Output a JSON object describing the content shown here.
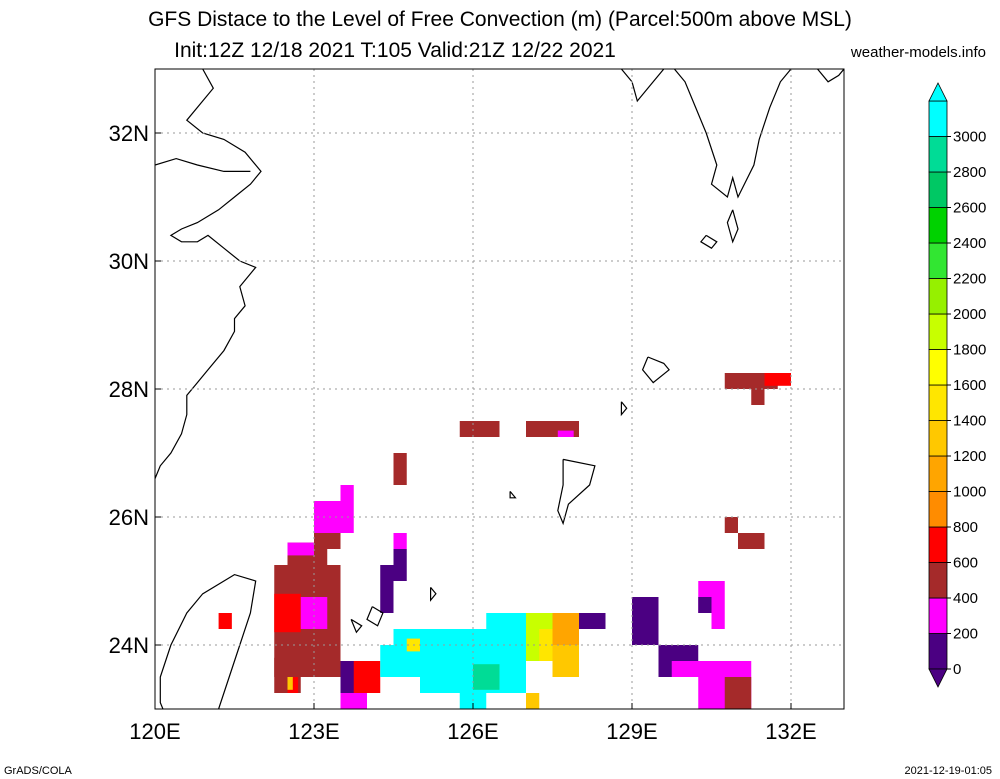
{
  "title_line1": "GFS Distace to the Level of Free Convection (m) (Parcel:500m above MSL)",
  "title_line2": "Init:12Z 12/18 2021 T:105 Valid:21Z 12/22 2021",
  "site": "weather-models.info",
  "footer_left": "GrADS/COLA",
  "footer_right": "2021-12-19-01:05",
  "map": {
    "lon_range": [
      120,
      133
    ],
    "lat_range": [
      23,
      33
    ],
    "lon_ticks": [
      120,
      123,
      126,
      129,
      132
    ],
    "lon_tick_labels": [
      "120E",
      "123E",
      "126E",
      "129E",
      "132E"
    ],
    "lat_ticks": [
      24,
      26,
      28,
      30,
      32
    ],
    "lat_tick_labels": [
      "24N",
      "26N",
      "28N",
      "30N",
      "32N"
    ],
    "grid": true
  },
  "colorbar": {
    "levels": [
      0,
      200,
      400,
      600,
      800,
      1000,
      1200,
      1400,
      1600,
      1800,
      2000,
      2200,
      2400,
      2600,
      2800,
      3000
    ],
    "labels": [
      "0",
      "200",
      "400",
      "600",
      "800",
      "1000",
      "1200",
      "1400",
      "1600",
      "1800",
      "2000",
      "2200",
      "2400",
      "2600",
      "2800",
      "3000"
    ],
    "colors": [
      "#4b0082",
      "#ff00ff",
      "#a52a2a",
      "#ff0000",
      "#ff8c00",
      "#ffa500",
      "#ffc800",
      "#ffe600",
      "#ffff00",
      "#c8ff00",
      "#96f000",
      "#32e632",
      "#00d200",
      "#00c864",
      "#00dc96",
      "#00ffff"
    ],
    "min_color": "#4b0082",
    "max_color": "#00ffff"
  },
  "field_cells": [
    {
      "lon0": 121.2,
      "lon1": 121.45,
      "lat0": 24.25,
      "lat1": 24.5,
      "c": "#ff0000"
    },
    {
      "lon0": 122.25,
      "lon1": 123.5,
      "lat0": 23.5,
      "lat1": 25.25,
      "c": "#a52a2a"
    },
    {
      "lon0": 122.25,
      "lon1": 122.75,
      "lat0": 24.2,
      "lat1": 24.8,
      "c": "#ff0000"
    },
    {
      "lon0": 122.25,
      "lon1": 122.75,
      "lat0": 23.25,
      "lat1": 23.8,
      "c": "#a52a2a"
    },
    {
      "lon0": 122.5,
      "lon1": 122.7,
      "lat0": 23.25,
      "lat1": 23.5,
      "c": "#ff0000"
    },
    {
      "lon0": 122.5,
      "lon1": 122.6,
      "lat0": 23.3,
      "lat1": 23.5,
      "c": "#ffc800"
    },
    {
      "lon0": 122.5,
      "lon1": 123.25,
      "lat0": 25.25,
      "lat1": 25.6,
      "c": "#a52a2a"
    },
    {
      "lon0": 122.5,
      "lon1": 123.0,
      "lat0": 25.4,
      "lat1": 25.6,
      "c": "#ff00ff"
    },
    {
      "lon0": 123.0,
      "lon1": 123.5,
      "lat0": 25.5,
      "lat1": 26.0,
      "c": "#a52a2a"
    },
    {
      "lon0": 123.0,
      "lon1": 123.75,
      "lat0": 25.75,
      "lat1": 26.25,
      "c": "#ff00ff"
    },
    {
      "lon0": 123.5,
      "lon1": 123.75,
      "lat0": 26.25,
      "lat1": 26.5,
      "c": "#ff00ff"
    },
    {
      "lon0": 122.75,
      "lon1": 123.25,
      "lat0": 24.25,
      "lat1": 24.75,
      "c": "#ff00ff"
    },
    {
      "lon0": 124.5,
      "lon1": 124.75,
      "lat0": 26.5,
      "lat1": 27.0,
      "c": "#a52a2a"
    },
    {
      "lon0": 124.5,
      "lon1": 124.75,
      "lat0": 25.5,
      "lat1": 25.75,
      "c": "#ff00ff"
    },
    {
      "lon0": 124.5,
      "lon1": 124.75,
      "lat0": 25.0,
      "lat1": 25.5,
      "c": "#4b0082"
    },
    {
      "lon0": 124.25,
      "lon1": 124.5,
      "lat0": 24.5,
      "lat1": 25.25,
      "c": "#4b0082"
    },
    {
      "lon0": 123.5,
      "lon1": 124.0,
      "lat0": 23.25,
      "lat1": 23.75,
      "c": "#4b0082"
    },
    {
      "lon0": 123.5,
      "lon1": 124.0,
      "lat0": 23.0,
      "lat1": 23.25,
      "c": "#ff00ff"
    },
    {
      "lon0": 123.75,
      "lon1": 124.25,
      "lat0": 23.25,
      "lat1": 23.75,
      "c": "#ff0000"
    },
    {
      "lon0": 124.25,
      "lon1": 125.0,
      "lat0": 23.5,
      "lat1": 24.0,
      "c": "#00ffff"
    },
    {
      "lon0": 124.5,
      "lon1": 125.75,
      "lat0": 23.75,
      "lat1": 24.25,
      "c": "#00ffff"
    },
    {
      "lon0": 124.75,
      "lon1": 125.25,
      "lat0": 23.9,
      "lat1": 24.1,
      "c": "#ffe600"
    },
    {
      "lon0": 125.0,
      "lon1": 127.0,
      "lat0": 23.25,
      "lat1": 24.25,
      "c": "#00ffff"
    },
    {
      "lon0": 126.25,
      "lon1": 127.25,
      "lat0": 24.0,
      "lat1": 24.5,
      "c": "#00ffff"
    },
    {
      "lon0": 125.75,
      "lon1": 126.25,
      "lat0": 23.0,
      "lat1": 23.5,
      "c": "#00ffff"
    },
    {
      "lon0": 126.0,
      "lon1": 126.5,
      "lat0": 23.3,
      "lat1": 23.7,
      "c": "#00dc96"
    },
    {
      "lon0": 127.0,
      "lon1": 127.5,
      "lat0": 23.75,
      "lat1": 24.5,
      "c": "#c8ff00"
    },
    {
      "lon0": 127.25,
      "lon1": 127.75,
      "lat0": 23.75,
      "lat1": 24.25,
      "c": "#ffe600"
    },
    {
      "lon0": 127.5,
      "lon1": 128.0,
      "lat0": 23.5,
      "lat1": 24.5,
      "c": "#ffc800"
    },
    {
      "lon0": 127.5,
      "lon1": 128.0,
      "lat0": 24.0,
      "lat1": 24.5,
      "c": "#ffa500"
    },
    {
      "lon0": 127.0,
      "lon1": 127.25,
      "lat0": 23.0,
      "lat1": 23.25,
      "c": "#ffc800"
    },
    {
      "lon0": 128.0,
      "lon1": 128.5,
      "lat0": 24.25,
      "lat1": 24.5,
      "c": "#4b0082"
    },
    {
      "lon0": 129.0,
      "lon1": 129.5,
      "lat0": 24.0,
      "lat1": 24.75,
      "c": "#4b0082"
    },
    {
      "lon0": 129.5,
      "lon1": 130.25,
      "lat0": 23.5,
      "lat1": 24.0,
      "c": "#4b0082"
    },
    {
      "lon0": 129.75,
      "lon1": 130.5,
      "lat0": 23.5,
      "lat1": 23.75,
      "c": "#ff00ff"
    },
    {
      "lon0": 130.25,
      "lon1": 131.25,
      "lat0": 23.0,
      "lat1": 23.75,
      "c": "#ff00ff"
    },
    {
      "lon0": 130.75,
      "lon1": 131.25,
      "lat0": 23.0,
      "lat1": 23.5,
      "c": "#a52a2a"
    },
    {
      "lon0": 130.25,
      "lon1": 130.75,
      "lat0": 24.5,
      "lat1": 25.0,
      "c": "#ff00ff"
    },
    {
      "lon0": 130.25,
      "lon1": 130.5,
      "lat0": 24.5,
      "lat1": 24.75,
      "c": "#4b0082"
    },
    {
      "lon0": 130.5,
      "lon1": 130.75,
      "lat0": 24.25,
      "lat1": 24.5,
      "c": "#ff00ff"
    },
    {
      "lon0": 125.75,
      "lon1": 126.5,
      "lat0": 27.25,
      "lat1": 27.5,
      "c": "#a52a2a"
    },
    {
      "lon0": 127.0,
      "lon1": 128.0,
      "lat0": 27.25,
      "lat1": 27.5,
      "c": "#a52a2a"
    },
    {
      "lon0": 127.6,
      "lon1": 127.9,
      "lat0": 27.25,
      "lat1": 27.35,
      "c": "#ff00ff"
    },
    {
      "lon0": 130.75,
      "lon1": 131.75,
      "lat0": 28.0,
      "lat1": 28.25,
      "c": "#a52a2a"
    },
    {
      "lon0": 131.5,
      "lon1": 132.0,
      "lat0": 28.05,
      "lat1": 28.25,
      "c": "#ff0000"
    },
    {
      "lon0": 131.25,
      "lon1": 131.5,
      "lat0": 27.75,
      "lat1": 28.0,
      "c": "#a52a2a"
    },
    {
      "lon0": 130.75,
      "lon1": 131.0,
      "lat0": 25.75,
      "lat1": 26.0,
      "c": "#a52a2a"
    },
    {
      "lon0": 131.0,
      "lon1": 131.5,
      "lat0": 25.5,
      "lat1": 25.75,
      "c": "#a52a2a"
    }
  ],
  "coastlines": [
    [
      [
        120.0,
        26.6
      ],
      [
        120.1,
        26.8
      ],
      [
        120.3,
        27.0
      ],
      [
        120.5,
        27.3
      ],
      [
        120.6,
        27.6
      ],
      [
        120.6,
        27.9
      ],
      [
        120.8,
        28.1
      ],
      [
        121.0,
        28.3
      ],
      [
        121.3,
        28.6
      ],
      [
        121.5,
        28.9
      ],
      [
        121.5,
        29.1
      ],
      [
        121.7,
        29.3
      ],
      [
        121.6,
        29.6
      ],
      [
        121.9,
        29.9
      ],
      [
        121.6,
        30.0
      ],
      [
        121.3,
        30.2
      ],
      [
        121.0,
        30.4
      ],
      [
        120.8,
        30.3
      ],
      [
        120.5,
        30.3
      ],
      [
        120.3,
        30.4
      ],
      [
        120.5,
        30.5
      ],
      [
        120.8,
        30.6
      ],
      [
        121.2,
        30.8
      ],
      [
        121.5,
        31.0
      ],
      [
        121.8,
        31.2
      ],
      [
        122.0,
        31.4
      ],
      [
        121.7,
        31.7
      ],
      [
        121.3,
        31.9
      ],
      [
        120.9,
        32.0
      ],
      [
        120.6,
        32.2
      ],
      [
        120.9,
        32.5
      ],
      [
        121.1,
        32.7
      ],
      [
        120.9,
        33.0
      ]
    ],
    [
      [
        120.0,
        31.5
      ],
      [
        120.4,
        31.6
      ],
      [
        120.8,
        31.5
      ],
      [
        121.3,
        31.4
      ],
      [
        121.8,
        31.4
      ]
    ],
    [
      [
        120.3,
        22.7
      ],
      [
        120.1,
        23.1
      ],
      [
        120.1,
        23.5
      ],
      [
        120.3,
        24.0
      ],
      [
        120.6,
        24.5
      ],
      [
        120.9,
        24.8
      ],
      [
        121.5,
        25.1
      ],
      [
        121.9,
        25.0
      ],
      [
        121.8,
        24.5
      ],
      [
        121.6,
        24.0
      ],
      [
        121.4,
        23.5
      ],
      [
        121.2,
        23.0
      ],
      [
        120.9,
        22.7
      ],
      [
        120.3,
        22.7
      ]
    ],
    [
      [
        128.8,
        33.0
      ],
      [
        129.0,
        32.8
      ],
      [
        129.1,
        32.5
      ],
      [
        129.4,
        32.8
      ],
      [
        129.6,
        33.0
      ]
    ],
    [
      [
        129.8,
        33.0
      ],
      [
        130.0,
        32.8
      ],
      [
        130.2,
        32.4
      ],
      [
        130.4,
        32.0
      ],
      [
        130.6,
        31.5
      ],
      [
        130.5,
        31.2
      ],
      [
        130.8,
        31.0
      ],
      [
        130.9,
        31.3
      ],
      [
        131.0,
        31.0
      ],
      [
        131.3,
        31.5
      ],
      [
        131.4,
        31.9
      ],
      [
        131.6,
        32.4
      ],
      [
        131.8,
        32.8
      ],
      [
        132.0,
        33.0
      ]
    ],
    [
      [
        132.5,
        33.0
      ],
      [
        132.7,
        32.8
      ],
      [
        132.9,
        32.9
      ],
      [
        133.0,
        33.0
      ]
    ],
    [
      [
        130.9,
        30.8
      ],
      [
        131.0,
        30.5
      ],
      [
        130.9,
        30.3
      ],
      [
        130.8,
        30.6
      ],
      [
        130.9,
        30.8
      ]
    ],
    [
      [
        130.4,
        30.4
      ],
      [
        130.6,
        30.3
      ],
      [
        130.5,
        30.2
      ],
      [
        130.3,
        30.3
      ],
      [
        130.4,
        30.4
      ]
    ],
    [
      [
        129.3,
        28.5
      ],
      [
        129.6,
        28.4
      ],
      [
        129.7,
        28.3
      ],
      [
        129.4,
        28.1
      ],
      [
        129.2,
        28.3
      ],
      [
        129.3,
        28.5
      ]
    ],
    [
      [
        127.7,
        26.9
      ],
      [
        128.3,
        26.8
      ],
      [
        128.2,
        26.5
      ],
      [
        127.8,
        26.2
      ],
      [
        127.7,
        25.9
      ],
      [
        127.6,
        26.1
      ],
      [
        127.7,
        26.5
      ],
      [
        127.7,
        26.9
      ]
    ],
    [
      [
        128.8,
        27.8
      ],
      [
        128.9,
        27.7
      ],
      [
        128.8,
        27.6
      ],
      [
        128.8,
        27.8
      ]
    ],
    [
      [
        124.1,
        24.6
      ],
      [
        124.3,
        24.5
      ],
      [
        124.2,
        24.3
      ],
      [
        124.0,
        24.4
      ],
      [
        124.1,
        24.6
      ]
    ],
    [
      [
        123.7,
        24.4
      ],
      [
        123.9,
        24.3
      ],
      [
        123.8,
        24.2
      ],
      [
        123.7,
        24.4
      ]
    ],
    [
      [
        125.2,
        24.9
      ],
      [
        125.3,
        24.8
      ],
      [
        125.2,
        24.7
      ],
      [
        125.2,
        24.9
      ]
    ],
    [
      [
        126.7,
        26.4
      ],
      [
        126.8,
        26.3
      ],
      [
        126.7,
        26.3
      ],
      [
        126.7,
        26.4
      ]
    ]
  ]
}
